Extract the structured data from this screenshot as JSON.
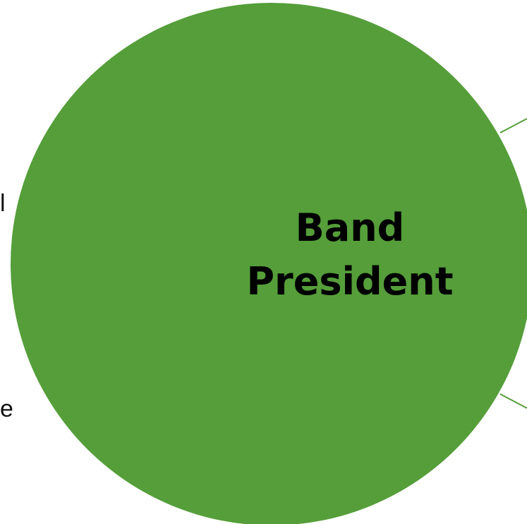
{
  "node": {
    "title_line1": "Band",
    "title_line2": "President",
    "fill": "#559e3a",
    "edge_color": "#559e3a"
  },
  "clipped_text": {
    "left_middle": "l",
    "left_lower": "e"
  }
}
